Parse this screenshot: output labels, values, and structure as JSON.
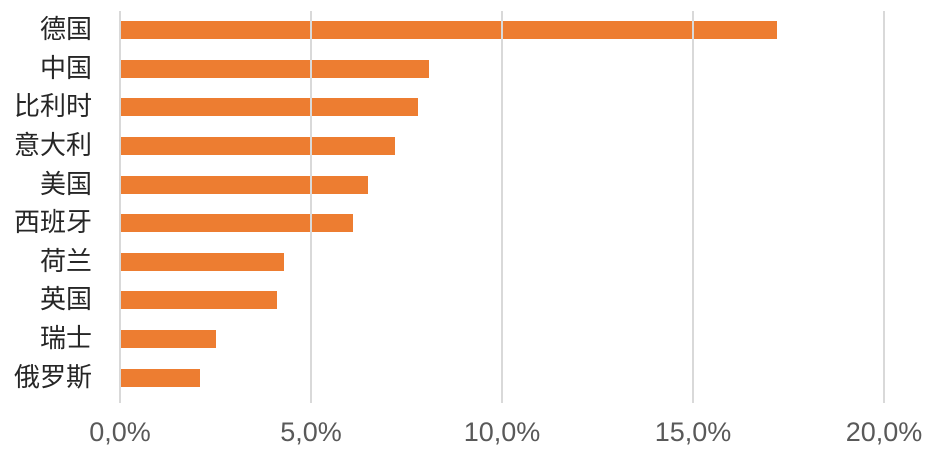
{
  "chart_data": {
    "type": "bar",
    "orientation": "horizontal",
    "title": "",
    "xlabel": "",
    "ylabel": "",
    "categories": [
      "德国",
      "中国",
      "比利时",
      "意大利",
      "美国",
      "西班牙",
      "荷兰",
      "英国",
      "瑞士",
      "俄罗斯"
    ],
    "values": [
      17.2,
      8.1,
      7.8,
      7.2,
      6.5,
      6.1,
      4.3,
      4.1,
      2.5,
      2.1
    ],
    "value_unit": "%",
    "xlim": [
      0,
      20
    ],
    "x_tick_values": [
      0,
      5,
      10,
      15,
      20
    ],
    "x_tick_labels": [
      "0,0%",
      "5,0%",
      "10,0%",
      "15,0%",
      "20,0%"
    ],
    "grid": true,
    "legend": false,
    "colors": {
      "bar": "#ED7D31",
      "gridline": "#D9D9D9",
      "axis_line": "#D9D9D9",
      "tick_label": "#595959",
      "category_label": "#262626",
      "background": "#FFFFFF"
    }
  }
}
